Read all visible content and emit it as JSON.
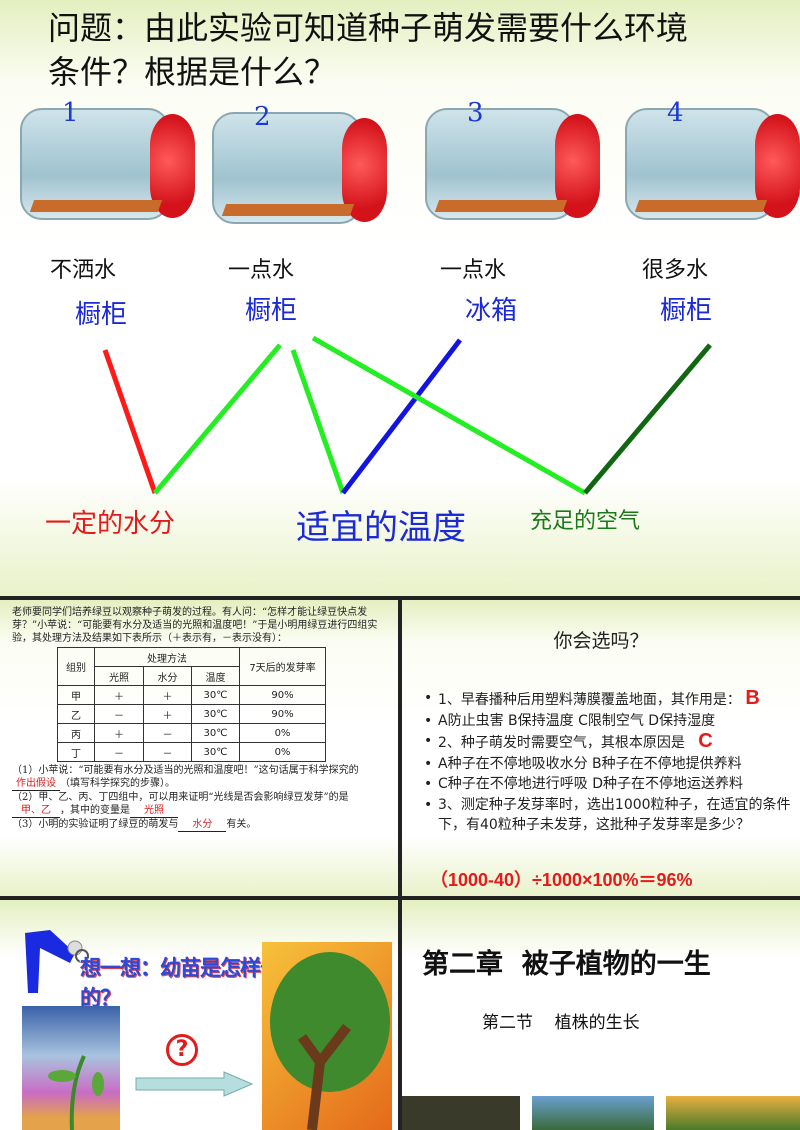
{
  "slide1": {
    "question": "问题：由此实验可知道种子萌发需要什么环境条件？根据是什么？",
    "jars": [
      {
        "number": "1",
        "water": "不洒水",
        "place": "橱柜"
      },
      {
        "number": "2",
        "water": "一点水",
        "place": "橱柜"
      },
      {
        "number": "3",
        "water": "一点水",
        "place": "冰箱"
      },
      {
        "number": "4",
        "water": "很多水",
        "place": "橱柜"
      }
    ],
    "results": [
      "一定的水分",
      "适宜的温度",
      "充足的空气"
    ],
    "colors": {
      "water": "#e51a1a",
      "temp": "#1c2ad6",
      "air": "#1a7a1a",
      "line_green": "#22e022"
    }
  },
  "slide2": {
    "intro": "老师要同学们培养绿豆以观察种子萌发的过程。有人问：“怎样才能让绿豆快点发芽？”小苹说：“可能要有水分及适当的光照和温度吧！”于是小明用绿豆进行四组实验，其处理方法及结果如下表所示（＋表示有，－表示没有）：",
    "table": {
      "headers": {
        "group": "组别",
        "method": "处理方法",
        "light": "光照",
        "water": "水分",
        "temp": "温度",
        "rate": "7天后的发芽率"
      },
      "rows": [
        [
          "甲",
          "＋",
          "＋",
          "30℃",
          "90%"
        ],
        [
          "乙",
          "－",
          "＋",
          "30℃",
          "90%"
        ],
        [
          "丙",
          "＋",
          "－",
          "30℃",
          "0%"
        ],
        [
          "丁",
          "－",
          "－",
          "30℃",
          "0%"
        ]
      ]
    },
    "q1a": "（1）小苹说：“可能要有水分及适当的光照和温度吧！”这句话属于科学探究的",
    "q1_answer": "作出假设",
    "q1b": "（填写科学探究的步骤）。",
    "q2a": "（2）甲、乙、丙、丁四组中，可以用来证明“光线是否会影响绿豆发芽”的是",
    "q2_answer1": "甲、乙",
    "q2b": "，其中的变量是",
    "q2_answer2": "光照",
    "q3a": "（3）小明的实验证明了绿豆的萌发与",
    "q3_answer": "水分",
    "q3b": "有关。"
  },
  "slide3": {
    "title": "你会选吗？",
    "items": [
      "1、早春播种后用塑料薄膜覆盖地面，其作用是：",
      "A防止虫害 B保持温度 C限制空气 D保持湿度",
      "2、种子萌发时需要空气，其根本原因是",
      "A种子在不停地吸收水分 B种子在不停地提供养料",
      "C种子在不停地进行呼吸 D种子在不停地运送养料",
      "3、测定种子发芽率时，选出1000粒种子，在适宜的条件下，有40粒种子未发芽，这批种子发芽率是多少？"
    ],
    "answer1": "B",
    "answer2": "C",
    "answer3": "（1000-40）÷1000×100%＝96%"
  },
  "slide4": {
    "title": "想一想：幼苗是怎样长成参天大树的？",
    "question_mark": "?"
  },
  "slide5": {
    "title": "第二章  被子植物的一生",
    "subtitle": "第二节    植株的生长"
  }
}
